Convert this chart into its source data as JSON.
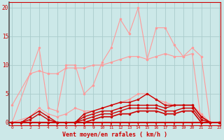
{
  "xlabel": "Vent moyen/en rafales ( km/h )",
  "bg_color": "#cce8e8",
  "grid_color": "#aacccc",
  "light_color": "#ff9999",
  "dark_color": "#cc0000",
  "x_min": 0,
  "x_max": 23,
  "y_min": -0.5,
  "y_max": 21,
  "yticks": [
    0,
    5,
    10,
    15,
    20
  ],
  "xticks": [
    0,
    1,
    2,
    3,
    4,
    5,
    6,
    7,
    8,
    9,
    10,
    11,
    12,
    13,
    14,
    15,
    16,
    17,
    18,
    19,
    20,
    21,
    22,
    23
  ],
  "series": [
    {
      "color": "#ff9999",
      "lw": 0.8,
      "points": [
        [
          0,
          3
        ],
        [
          2,
          8.5
        ],
        [
          3,
          13
        ],
        [
          4,
          2.5
        ],
        [
          5,
          2
        ],
        [
          6,
          10
        ],
        [
          7,
          10
        ],
        [
          8,
          5
        ],
        [
          9,
          6.5
        ],
        [
          10,
          10.5
        ],
        [
          11,
          13
        ],
        [
          12,
          18
        ],
        [
          13,
          15.5
        ],
        [
          14,
          20
        ],
        [
          15,
          11
        ],
        [
          16,
          16.5
        ],
        [
          17,
          16.5
        ],
        [
          18,
          13.5
        ],
        [
          19,
          11.5
        ],
        [
          20,
          12
        ],
        [
          21,
          0
        ],
        [
          22,
          0
        ]
      ]
    },
    {
      "color": "#ff9999",
      "lw": 0.8,
      "points": [
        [
          0,
          0
        ],
        [
          2,
          8.5
        ],
        [
          3,
          9
        ],
        [
          4,
          8.5
        ],
        [
          5,
          8.5
        ],
        [
          6,
          9.5
        ],
        [
          7,
          9.5
        ],
        [
          8,
          9.5
        ],
        [
          9,
          10
        ],
        [
          10,
          10
        ],
        [
          11,
          10.5
        ],
        [
          12,
          11
        ],
        [
          13,
          11.5
        ],
        [
          14,
          11.5
        ],
        [
          15,
          11
        ],
        [
          16,
          11.5
        ],
        [
          17,
          12
        ],
        [
          18,
          11.5
        ],
        [
          19,
          11.5
        ],
        [
          20,
          13
        ],
        [
          21,
          11.5
        ],
        [
          22,
          0
        ]
      ]
    },
    {
      "color": "#ff9999",
      "lw": 0.8,
      "points": [
        [
          0,
          0
        ],
        [
          2,
          1
        ],
        [
          3,
          2.5
        ],
        [
          4,
          1.5
        ],
        [
          5,
          1
        ],
        [
          6,
          1.5
        ],
        [
          7,
          2.5
        ],
        [
          8,
          2
        ],
        [
          9,
          2
        ],
        [
          10,
          2.5
        ],
        [
          11,
          3
        ],
        [
          12,
          3.5
        ],
        [
          13,
          4
        ],
        [
          14,
          5
        ],
        [
          15,
          5
        ],
        [
          16,
          4
        ],
        [
          17,
          3.5
        ],
        [
          18,
          3
        ],
        [
          19,
          3
        ],
        [
          20,
          3
        ],
        [
          21,
          1.5
        ],
        [
          22,
          0
        ]
      ]
    },
    {
      "color": "#cc0000",
      "lw": 1.0,
      "points": [
        [
          0,
          0
        ],
        [
          1,
          0
        ],
        [
          2,
          1
        ],
        [
          3,
          2
        ],
        [
          4,
          1
        ],
        [
          5,
          0
        ],
        [
          6,
          0
        ],
        [
          7,
          0
        ],
        [
          8,
          1.5
        ],
        [
          9,
          2
        ],
        [
          10,
          2.5
        ],
        [
          11,
          3
        ],
        [
          12,
          3.5
        ],
        [
          13,
          3.5
        ],
        [
          14,
          4
        ],
        [
          15,
          5
        ],
        [
          16,
          4
        ],
        [
          17,
          3
        ],
        [
          18,
          3
        ],
        [
          19,
          3
        ],
        [
          20,
          3
        ],
        [
          21,
          1
        ],
        [
          22,
          0
        ],
        [
          23,
          0
        ]
      ]
    },
    {
      "color": "#cc0000",
      "lw": 1.0,
      "points": [
        [
          0,
          0
        ],
        [
          1,
          0
        ],
        [
          2,
          0.5
        ],
        [
          3,
          1.5
        ],
        [
          4,
          0.5
        ],
        [
          5,
          0
        ],
        [
          6,
          0
        ],
        [
          7,
          0
        ],
        [
          8,
          1
        ],
        [
          9,
          1.5
        ],
        [
          10,
          2
        ],
        [
          11,
          2
        ],
        [
          12,
          2.5
        ],
        [
          13,
          3
        ],
        [
          14,
          3
        ],
        [
          15,
          3
        ],
        [
          16,
          3
        ],
        [
          17,
          2.5
        ],
        [
          18,
          3
        ],
        [
          19,
          3
        ],
        [
          20,
          3
        ],
        [
          21,
          1
        ],
        [
          22,
          0
        ],
        [
          23,
          0
        ]
      ]
    },
    {
      "color": "#cc0000",
      "lw": 1.0,
      "points": [
        [
          0,
          0
        ],
        [
          1,
          0
        ],
        [
          2,
          0
        ],
        [
          3,
          0
        ],
        [
          4,
          0
        ],
        [
          5,
          0
        ],
        [
          6,
          0
        ],
        [
          7,
          0
        ],
        [
          8,
          0.5
        ],
        [
          9,
          1
        ],
        [
          10,
          1.5
        ],
        [
          11,
          1.5
        ],
        [
          12,
          2
        ],
        [
          13,
          2.5
        ],
        [
          14,
          2.5
        ],
        [
          15,
          2.5
        ],
        [
          16,
          2.5
        ],
        [
          17,
          2
        ],
        [
          18,
          2
        ],
        [
          19,
          2.5
        ],
        [
          20,
          2.5
        ],
        [
          21,
          0.5
        ],
        [
          22,
          0
        ],
        [
          23,
          0
        ]
      ]
    },
    {
      "color": "#cc0000",
      "lw": 1.2,
      "points": [
        [
          0,
          0
        ],
        [
          1,
          0
        ],
        [
          2,
          0
        ],
        [
          3,
          0
        ],
        [
          4,
          0
        ],
        [
          5,
          0
        ],
        [
          6,
          0
        ],
        [
          7,
          0
        ],
        [
          8,
          0
        ],
        [
          9,
          0.5
        ],
        [
          10,
          1
        ],
        [
          11,
          1
        ],
        [
          12,
          1.5
        ],
        [
          13,
          1.5
        ],
        [
          14,
          2
        ],
        [
          15,
          2
        ],
        [
          16,
          2
        ],
        [
          17,
          1.5
        ],
        [
          18,
          1.5
        ],
        [
          19,
          2
        ],
        [
          20,
          2
        ],
        [
          21,
          0
        ],
        [
          22,
          0
        ],
        [
          23,
          0
        ]
      ]
    }
  ],
  "arrows_x": [
    0,
    1,
    2,
    3,
    4,
    5,
    6,
    7,
    8,
    9,
    10,
    11,
    12,
    13,
    14,
    15,
    16,
    17,
    18,
    19,
    20,
    21,
    22
  ]
}
